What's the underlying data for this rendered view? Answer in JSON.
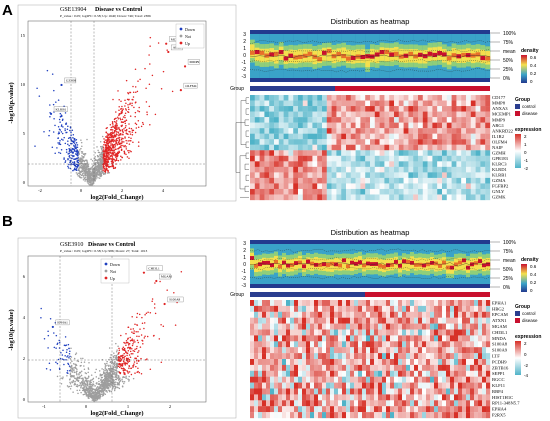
{
  "panels": [
    {
      "letter": "A",
      "volcano": {
        "dataset": "GSE13904",
        "comparison": "Disease vs Control",
        "stats": "P_value : 0.05; log2FC: 0.58; Up: 1640; Down: 746; Total: 2386",
        "xlabel": "log2(Fold_Change)",
        "ylabel": "-log10(p.value)",
        "yticks": [
          "15",
          "10",
          "5",
          "0"
        ],
        "xticks": [
          "-2",
          "0",
          "2",
          "4"
        ],
        "legend": [
          "Down",
          "Not",
          "Up"
        ]
      },
      "heatmap": {
        "title": "Distribution as heatmap",
        "density_legend_title": "density",
        "density_ticks": [
          "0.6",
          "0.4",
          "0.2",
          "0"
        ],
        "density_yticks": [
          "3",
          "2",
          "1",
          "0",
          "-1",
          "-2",
          "-3"
        ],
        "quantiles": [
          "100%",
          "75%",
          "mean",
          "50%",
          "25%",
          "0%"
        ],
        "group_label": "Group",
        "group_legend_title": "Group",
        "groups": [
          "control",
          "disease"
        ],
        "expression_legend_title": "expression",
        "expression_ticks": [
          "2",
          "1",
          "0",
          "-1",
          "-2"
        ],
        "genes": [
          "CD177",
          "MMP8",
          "ANXA3",
          "MCEMP1",
          "MMP9",
          "ARG1",
          "ANKRD22",
          "IL1R2",
          "OLFM4",
          "NAIP",
          "GZMH",
          "GPR183",
          "KLRC3",
          "KLRD1",
          "KLRB1",
          "GZMA",
          "FGFBP2",
          "GNLY",
          "GZMK"
        ]
      }
    },
    {
      "letter": "B",
      "volcano": {
        "dataset": "GSE3910",
        "comparison": "Disease vs Control",
        "stats": "P_value : 0.05; log2FC: 0.58; Up: 986; Down: 27; Total: 1013",
        "xlabel": "log2(Fold_Change)",
        "ylabel": "-log10(p.value)",
        "yticks": [
          "6",
          "4",
          "2",
          "0"
        ],
        "xticks": [
          "-1",
          "0",
          "1",
          "2"
        ],
        "legend": [
          "Down",
          "Not",
          "Up"
        ]
      },
      "heatmap": {
        "title": "Distribution as heatmap",
        "density_legend_title": "density",
        "density_ticks": [
          "0.6",
          "0.4",
          "0.2",
          "0"
        ],
        "density_yticks": [
          "3",
          "2",
          "1",
          "0",
          "-1",
          "-2",
          "-3"
        ],
        "quantiles": [
          "100%",
          "75%",
          "mean",
          "50%",
          "25%",
          "0%"
        ],
        "group_label": "Group",
        "group_legend_title": "Group",
        "groups": [
          "control",
          "disease"
        ],
        "expression_legend_title": "expression",
        "expression_ticks": [
          "2",
          "0",
          "-2",
          "-4"
        ],
        "genes": [
          "EPHA1",
          "HBG2",
          "EPCAM",
          "ATXN1",
          "MGAM",
          "CHI3L1",
          "MNDA",
          "S100A8",
          "S100A9",
          "LTF",
          "PCDH9",
          "ZBTB16",
          "SEPP1",
          "BGCC",
          "KLF11",
          "RBP4",
          "HIST1H1C",
          "RP11-348N5.7",
          "EPHA4",
          "P2RX5"
        ]
      }
    }
  ],
  "colors": {
    "down": "#1f3fbf",
    "not": "#9e9e9e",
    "up": "#e02424",
    "control": "#2a3d8f",
    "disease": "#c8102e",
    "heat_high": "#d73027",
    "heat_mid": "#ffffff",
    "heat_low": "#4fb3c8"
  },
  "chart_data": [
    {
      "type": "scatter",
      "title": "GSE13904 Disease vs Control",
      "xlabel": "log2(Fold_Change)",
      "ylabel": "-log10(p.value)",
      "xlim": [
        -3,
        5.5
      ],
      "ylim": [
        0,
        16
      ],
      "thresholds": {
        "log2fc": [
          -0.58,
          0.58
        ],
        "neglog10p": 1.3
      },
      "series": [
        {
          "name": "Down",
          "count": 746
        },
        {
          "name": "Not"
        },
        {
          "name": "Up",
          "count": 1640
        }
      ],
      "labeled_points": [
        {
          "label": "MCEMP1",
          "x": 3.6,
          "y": 13.8
        },
        {
          "label": "ARG1",
          "x": 3.7,
          "y": 13.0
        },
        {
          "label": "MMP9",
          "x": 4.5,
          "y": 11.6
        },
        {
          "label": "OLFM4",
          "x": 4.3,
          "y": 9.3
        },
        {
          "label": "GZMH",
          "x": -1.4,
          "y": 9.8
        },
        {
          "label": "KLRB1",
          "x": -1.9,
          "y": 7.0
        }
      ]
    },
    {
      "type": "scatter",
      "title": "GSE3910 Disease vs Control",
      "xlabel": "log2(Fold_Change)",
      "ylabel": "-log10(p.value)",
      "xlim": [
        -1.6,
        2.7
      ],
      "ylim": [
        0,
        7
      ],
      "thresholds": {
        "log2fc": [
          -0.58,
          0.58
        ],
        "neglog10p": 1.3
      },
      "series": [
        {
          "name": "Down",
          "count": 27
        },
        {
          "name": "Not"
        },
        {
          "name": "Up",
          "count": 986
        }
      ],
      "labeled_points": [
        {
          "label": "CHI3L1",
          "x": 1.2,
          "y": 6.2
        },
        {
          "label": "MGAM",
          "x": 1.5,
          "y": 5.8
        },
        {
          "label": "S100A8",
          "x": 1.7,
          "y": 4.7
        },
        {
          "label": "EPHA1",
          "x": -1.0,
          "y": 3.6
        }
      ]
    },
    {
      "type": "heatmap",
      "title": "Distribution as heatmap",
      "rows": [
        "CD177",
        "MMP8",
        "ANXA3",
        "MCEMP1",
        "MMP9",
        "ARG1",
        "ANKRD22",
        "IL1R2",
        "OLFM4",
        "NAIP",
        "GZMH",
        "GPR183",
        "KLRC3",
        "KLRD1",
        "KLRB1",
        "GZMA",
        "FGFBP2",
        "GNLY",
        "GZMK"
      ],
      "column_groups": [
        {
          "name": "control",
          "n": 16
        },
        {
          "name": "disease",
          "n": 34
        }
      ],
      "pattern": "first 10 genes high in disease, low in control; last 9 genes high in control, low in disease"
    },
    {
      "type": "heatmap",
      "title": "Distribution as heatmap",
      "rows": [
        "EPHA1",
        "HBG2",
        "EPCAM",
        "ATXN1",
        "MGAM",
        "CHI3L1",
        "MNDA",
        "S100A8",
        "S100A9",
        "LTF",
        "PCDH9",
        "ZBTB16",
        "SEPP1",
        "BGCC",
        "KLF11",
        "RBP4",
        "HIST1H1C",
        "RP11-348N5.7",
        "EPHA4",
        "P2RX5"
      ],
      "column_groups": [
        {
          "name": "control",
          "n": 20
        },
        {
          "name": "disease",
          "n": 40
        }
      ]
    }
  ]
}
